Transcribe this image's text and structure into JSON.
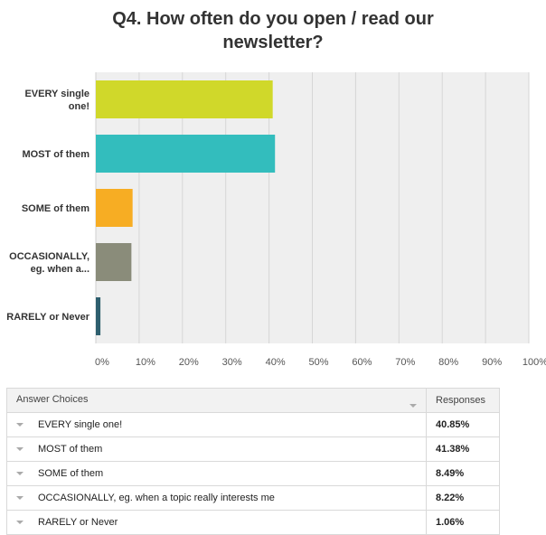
{
  "title_line1": "Q4. How often do you open / read our",
  "title_line2": "newsletter?",
  "chart_data": {
    "type": "bar",
    "orientation": "horizontal",
    "categories": [
      "EVERY single one!",
      "MOST of them",
      "SOME of them",
      "OCCASIONALLY, eg. when a...",
      "RARELY or Never"
    ],
    "category_labels_wrapped": [
      [
        "EVERY single",
        "one!"
      ],
      [
        "MOST of them"
      ],
      [
        "SOME of them"
      ],
      [
        "OCCASIONALLY,",
        "eg. when a..."
      ],
      [
        "RARELY or Never"
      ]
    ],
    "values": [
      40.85,
      41.38,
      8.49,
      8.22,
      1.06
    ],
    "colors": [
      "#d0d82a",
      "#33bdbd",
      "#f7ad23",
      "#8a8c7a",
      "#2e5f6e"
    ],
    "xlim": [
      0,
      100
    ],
    "xticks": [
      "0%",
      "10%",
      "20%",
      "30%",
      "40%",
      "50%",
      "60%",
      "70%",
      "80%",
      "90%",
      "100%"
    ],
    "grid": true,
    "legend": "none"
  },
  "table": {
    "header_choice": "Answer Choices",
    "header_responses": "Responses",
    "rows": [
      {
        "choice": "EVERY single one!",
        "pct": "40.85%"
      },
      {
        "choice": "MOST of them",
        "pct": "41.38%"
      },
      {
        "choice": "SOME of them",
        "pct": "8.49%"
      },
      {
        "choice": "OCCASIONALLY, eg. when a topic really interests me",
        "pct": "8.22%"
      },
      {
        "choice": "RARELY or Never",
        "pct": "1.06%"
      }
    ]
  }
}
